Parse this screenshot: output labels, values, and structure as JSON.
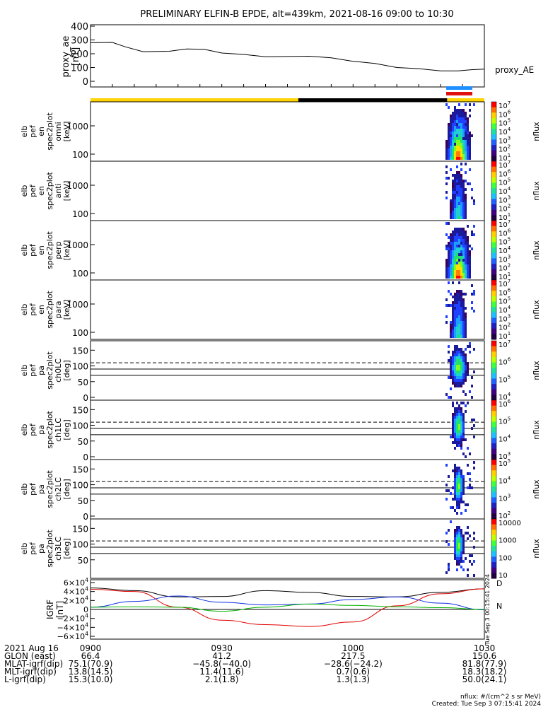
{
  "header": {
    "title": "PRELIMINARY ELFIN-B EPDE, alt=439km, 2021-08-16 09:00 to 10:30"
  },
  "colors": {
    "ae_line": "#000000",
    "bar_yellow": "#ffd400",
    "bar_black": "#000000",
    "bar_blue": "#1e90ff",
    "bar_red": "#e01010",
    "igrf_x": "#e00000",
    "igrf_y": "#00b000",
    "igrf_z": "#1030e0",
    "igrf_total": "#000000"
  },
  "chart_data": [
    {
      "id": "proxy_ae",
      "type": "line",
      "ylabel": [
        "proxy_ae",
        "[nT]"
      ],
      "yticks": [
        "400",
        "300",
        "200",
        "100",
        "0"
      ],
      "ylim": [
        0,
        400
      ],
      "legend": "proxy_AE",
      "x_minutes": [
        0,
        5,
        8,
        12,
        18,
        22,
        26,
        30,
        35,
        40,
        45,
        50,
        55,
        60,
        65,
        70,
        75,
        80,
        84,
        87,
        90
      ],
      "values": [
        280,
        282,
        250,
        215,
        218,
        235,
        232,
        205,
        195,
        178,
        180,
        182,
        170,
        145,
        130,
        100,
        92,
        76,
        76,
        84,
        88
      ]
    },
    {
      "id": "omni",
      "type": "heatmap",
      "ylabel": [
        "elb",
        "pef",
        "en",
        "spec2plot",
        "omni",
        "[keV]"
      ],
      "yticks": [
        "1000",
        "100"
      ],
      "colorbar": {
        "label": "nflux",
        "ticks": [
          "10^7",
          "10^6",
          "10^5",
          "10^4",
          "10^3",
          "10^2",
          "10^1"
        ]
      }
    },
    {
      "id": "anti",
      "type": "heatmap",
      "ylabel": [
        "elb",
        "pef",
        "en",
        "spec2plot",
        "anti",
        "[keV]"
      ],
      "yticks": [
        "1000",
        "100"
      ],
      "colorbar": {
        "label": "nflux",
        "ticks": [
          "10^7",
          "10^6",
          "10^5",
          "10^4",
          "10^3",
          "10^2",
          "10^1"
        ]
      }
    },
    {
      "id": "perp",
      "type": "heatmap",
      "ylabel": [
        "elb",
        "pef",
        "en",
        "spec2plot",
        "perp",
        "[keV]"
      ],
      "yticks": [
        "1000",
        "100"
      ],
      "colorbar": {
        "label": "nflux",
        "ticks": [
          "10^7",
          "10^6",
          "10^5",
          "10^4",
          "10^3",
          "10^2",
          "10^1"
        ]
      }
    },
    {
      "id": "para",
      "type": "heatmap",
      "ylabel": [
        "elb",
        "pef",
        "en",
        "spec2plot",
        "para",
        "[keV]"
      ],
      "yticks": [
        "1000",
        "100"
      ],
      "colorbar": {
        "label": "nflux",
        "ticks": [
          "10^7",
          "10^6",
          "10^5",
          "10^4",
          "10^3",
          "10^2",
          "10^1"
        ]
      }
    },
    {
      "id": "ch0LC",
      "type": "heatmap",
      "ylabel": [
        "elb",
        "pef",
        "pa",
        "spec2plot",
        "ch0LC",
        "[deg]"
      ],
      "yticks": [
        "150",
        "100",
        "50",
        "0"
      ],
      "colorbar": {
        "label": "nflux",
        "ticks": [
          "10^7",
          "10^6",
          "10^5",
          "10^4"
        ]
      }
    },
    {
      "id": "ch1LC",
      "type": "heatmap",
      "ylabel": [
        "elb",
        "pef",
        "pa",
        "spec2plot",
        "ch1LC",
        "[deg]"
      ],
      "yticks": [
        "150",
        "100",
        "50",
        "0"
      ],
      "colorbar": {
        "label": "nflux",
        "ticks": [
          "10^6",
          "10^5",
          "10^4",
          "10^3"
        ]
      }
    },
    {
      "id": "ch2LC",
      "type": "heatmap",
      "ylabel": [
        "elb",
        "pef",
        "pa",
        "spec2plot",
        "ch2LC",
        "[deg]"
      ],
      "yticks": [
        "150",
        "100",
        "50",
        "0"
      ],
      "colorbar": {
        "label": "nflux",
        "ticks": [
          "10^5",
          "10^4",
          "10^3",
          "10^2"
        ]
      }
    },
    {
      "id": "ch3LC",
      "type": "heatmap",
      "ylabel": [
        "elb",
        "pef",
        "pa",
        "spec2plot",
        "ch3LC",
        "[deg]"
      ],
      "yticks": [
        "150",
        "100",
        "50"
      ],
      "colorbar": {
        "label": "nflux",
        "ticks": [
          "10000",
          "1000",
          "100",
          "10"
        ]
      }
    },
    {
      "id": "igrf",
      "type": "line",
      "ylabel": [
        "IGRF",
        "[nT]"
      ],
      "yticks": [
        "6×10^4",
        "4×10^4",
        "2×10^4",
        "0",
        "−2×10^4",
        "−4×10^4",
        "−6×10^4"
      ],
      "ylim": [
        -60000,
        60000
      ],
      "legend": [
        "D",
        "N"
      ],
      "x_minutes": [
        0,
        10,
        20,
        30,
        40,
        50,
        60,
        70,
        80,
        90
      ],
      "series": [
        {
          "color_key": "igrf_total",
          "values": [
            48000,
            42000,
            28000,
            29000,
            42000,
            38000,
            29000,
            28000,
            38000,
            46000
          ]
        },
        {
          "color_key": "igrf_x",
          "values": [
            45000,
            40000,
            5000,
            -24000,
            -34000,
            -38000,
            -28000,
            8000,
            35000,
            46000
          ]
        },
        {
          "color_key": "igrf_z",
          "values": [
            5000,
            18000,
            30000,
            16000,
            10000,
            12000,
            22000,
            28000,
            14000,
            -1000
          ]
        },
        {
          "color_key": "igrf_y",
          "values": [
            5000,
            6000,
            5000,
            -4000,
            5000,
            12000,
            9000,
            6000,
            4000,
            0
          ]
        }
      ]
    }
  ],
  "xaxis": {
    "labels": [
      "0900",
      "0930",
      "1000",
      "1030"
    ],
    "rows": [
      {
        "name": "2021 Aug 16",
        "vals": [
          "0900",
          "0930",
          "1000",
          "1030"
        ]
      },
      {
        "name": "GLON (east)",
        "vals": [
          "66.4",
          "41.2",
          "217.5",
          "150.6"
        ]
      },
      {
        "name": "MLAT-igrf(dip)",
        "vals": [
          "75.1(70.9)",
          "−45.8(−40.0)",
          "−28.6(−24.2)",
          "81.8(77.9)"
        ]
      },
      {
        "name": "MLT-igrf(dip)",
        "vals": [
          "13.8(14.5)",
          "11.4(11.6)",
          "0.7(0.6)",
          "18.3(18.2)"
        ]
      },
      {
        "name": "L-igrf(dip)",
        "vals": [
          "15.3(10.0)",
          "2.1(1.8)",
          "1.3(1.3)",
          "50.0(24.1)"
        ]
      }
    ]
  },
  "footer": {
    "units": "nflux: #/(cm^2 s sr MeV)",
    "created": "Created: Tue Sep  3 07:15:41 2024",
    "side_stamp": "Tue Sep  3 00:15:41 2024"
  }
}
